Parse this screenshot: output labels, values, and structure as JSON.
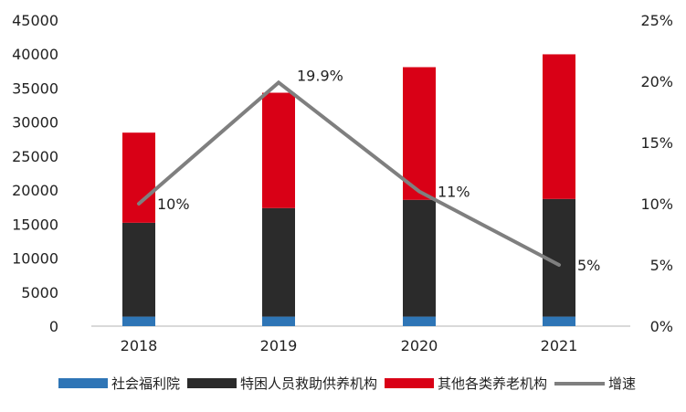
{
  "chart_data": {
    "type": "bar",
    "stacked": true,
    "categories": [
      "2018",
      "2019",
      "2020",
      "2021"
    ],
    "series": [
      {
        "name": "社会福利院",
        "color": "#2E75B6",
        "values": [
          1400,
          1400,
          1400,
          1400
        ]
      },
      {
        "name": "特困人员救助供养机构",
        "color": "#2B2B2B",
        "values": [
          13800,
          15960,
          17170,
          17300
        ]
      },
      {
        "name": "其他各类养老机构",
        "color": "#D90016",
        "values": [
          13250,
          16960,
          19510,
          21270
        ]
      }
    ],
    "line": {
      "name": "增速",
      "color": "#7F7F7F",
      "values": [
        10,
        19.9,
        11,
        5
      ],
      "labels": [
        "10%",
        "19.9%",
        "11%",
        "5%"
      ],
      "axis": "right"
    },
    "y_left": {
      "min": 0,
      "max": 45000,
      "ticks": [
        "0",
        "5000",
        "10000",
        "15000",
        "20000",
        "25000",
        "30000",
        "35000",
        "40000",
        "45000"
      ]
    },
    "y_right": {
      "min": 0,
      "max": 25,
      "ticks": [
        "0%",
        "5%",
        "10%",
        "15%",
        "20%",
        "25%"
      ]
    },
    "legend_position": "bottom",
    "grid": false
  }
}
